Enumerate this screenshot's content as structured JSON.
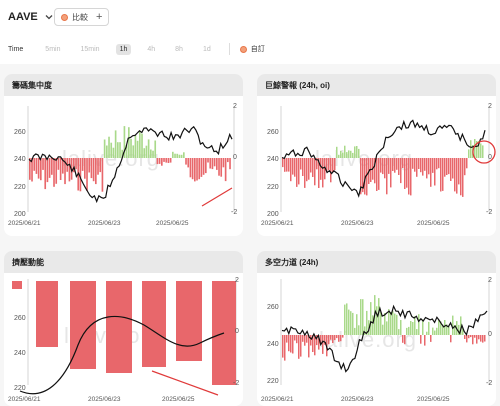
{
  "header": {
    "coin": "AAVE",
    "compare_label": "比較",
    "time_label": "Time",
    "timeframes": [
      {
        "label": "5min",
        "active": false
      },
      {
        "label": "15min",
        "active": false
      },
      {
        "label": "1h",
        "active": true
      },
      {
        "label": "4h",
        "active": false
      },
      {
        "label": "8h",
        "active": false
      },
      {
        "label": "1d",
        "active": false
      }
    ],
    "custom_label": "自訂"
  },
  "watermark": "lalive.org",
  "colors": {
    "up": "#a9d98a",
    "down": "#e8676b",
    "price": "#111111",
    "annotation": "#e03a3a"
  },
  "panels": [
    {
      "title": "籌碼集中度",
      "left_ticks": [
        "260",
        "240",
        "220",
        "200"
      ],
      "right_ticks": [
        "2",
        "0",
        "-2"
      ],
      "x_labels": [
        "2025/06/21",
        "2025/06/23",
        "2025/06/25"
      ]
    },
    {
      "title": "巨鯨警報 (24h, oi)",
      "left_ticks": [
        "260",
        "240",
        "220",
        "200"
      ],
      "right_ticks": [
        "2",
        "0",
        "-2"
      ],
      "x_labels": [
        "2025/06/21",
        "2025/06/23",
        "2025/06/25"
      ]
    },
    {
      "title": "擠壓動能",
      "left_ticks": [
        "260",
        "240",
        "220"
      ],
      "right_ticks": [
        "2",
        "0",
        "-2"
      ],
      "x_labels": [
        "2025/06/21",
        "2025/06/23",
        "2025/06/25"
      ]
    },
    {
      "title": "多空力道 (24h)",
      "left_ticks": [
        "260",
        "240",
        "220"
      ],
      "right_ticks": [
        "2",
        "0",
        "-2"
      ],
      "x_labels": [
        "2025/06/21",
        "2025/06/23",
        "2025/06/25"
      ]
    }
  ]
}
